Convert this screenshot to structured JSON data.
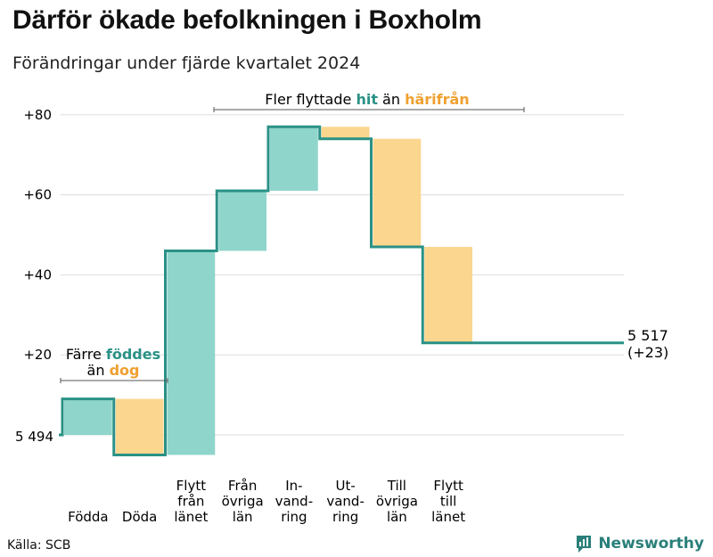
{
  "title": "Därför ökade befolkningen i Boxholm",
  "subtitle": "Förändringar under fjärde kvartalet 2024",
  "source": "Källa: SCB",
  "brand": {
    "name": "Newsworthy"
  },
  "colors": {
    "increase": "#8fd5cb",
    "decrease": "#fbd68f",
    "line": "#2a9186",
    "grid": "#dddddd",
    "teal_text": "#2a9186",
    "orange_text": "#f0a030"
  },
  "chart_data": {
    "type": "waterfall",
    "start_label": "5 494",
    "end_label": "5 517",
    "end_change": "(+23)",
    "y_ticks": [
      "+80",
      "+60",
      "+40",
      "+20"
    ],
    "y_tick_values": [
      80,
      60,
      40,
      20
    ],
    "ylim": [
      -5,
      82
    ],
    "steps": [
      {
        "label": "Födda",
        "lines": [
          "Födda"
        ],
        "delta": 9
      },
      {
        "label": "Döda",
        "lines": [
          "Döda"
        ],
        "delta": -14
      },
      {
        "label": "Flytt från länet",
        "lines": [
          "Flytt",
          "från",
          "länet"
        ],
        "delta": 51
      },
      {
        "label": "Från övriga län",
        "lines": [
          "Från",
          "övriga",
          "län"
        ],
        "delta": 15
      },
      {
        "label": "Invandring",
        "lines": [
          "In-",
          "vand-",
          "ring"
        ],
        "delta": 16
      },
      {
        "label": "Utvandring",
        "lines": [
          "Ut-",
          "vand-",
          "ring"
        ],
        "delta": -3
      },
      {
        "label": "Till övriga län",
        "lines": [
          "Till",
          "övriga",
          "län"
        ],
        "delta": -27
      },
      {
        "label": "Flytt till länet",
        "lines": [
          "Flytt",
          "till",
          "länet"
        ],
        "delta": -24
      }
    ],
    "annotation_left": {
      "line1_a": "Färre ",
      "line1_b": "föddes",
      "line2_a": "än ",
      "line2_b": "dog"
    },
    "annotation_right": {
      "a": "Fler flyttade ",
      "b": "hit",
      "c": " än ",
      "d": "härifrån"
    }
  }
}
